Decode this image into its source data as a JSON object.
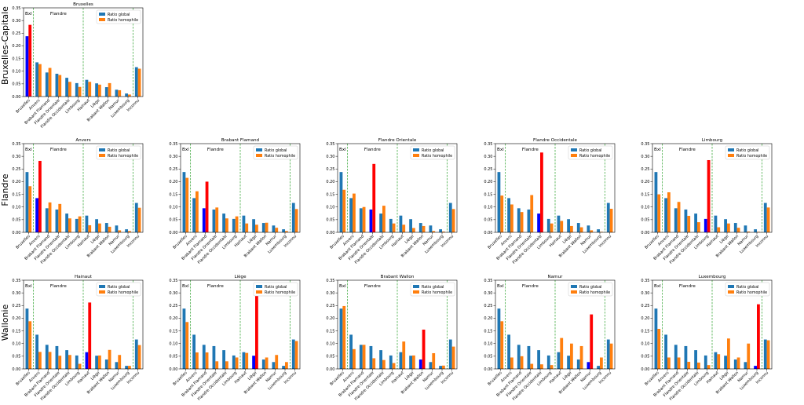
{
  "row_labels": [
    "Bruxelles-Capitale",
    "Flandre",
    "Wallonie"
  ],
  "regions": {
    "bxl": "Bxl",
    "flandre": "Flandre",
    "wallonie": "Wallonie"
  },
  "colors": {
    "global": "#1f77b4",
    "homophile": "#ff7f0e",
    "highlight_global": "#0000ff",
    "highlight_homophile": "#ff0000",
    "separator": "#2ca02c"
  },
  "chart_data": [
    {
      "type": "bar",
      "title": "Bruxelles",
      "highlight": 0,
      "categories": [
        "Bruxelles",
        "Anvers",
        "Brabant Flamand",
        "Flandre Orientale",
        "Flandre Occidentale",
        "Limbourg",
        "Hainaut",
        "Liège",
        "Brabant Wallon",
        "Namur",
        "Luxembourg",
        "Inconnu"
      ],
      "series": [
        {
          "name": "Ratio global",
          "values": [
            0.238,
            0.135,
            0.095,
            0.09,
            0.074,
            0.053,
            0.066,
            0.052,
            0.037,
            0.027,
            0.012,
            0.116
          ]
        },
        {
          "name": "Ratio homophile",
          "values": [
            0.283,
            0.128,
            0.113,
            0.085,
            0.058,
            0.038,
            0.058,
            0.047,
            0.053,
            0.025,
            0.008,
            0.11
          ]
        }
      ],
      "ylim": [
        0,
        0.35
      ],
      "yticks": [
        "0.00",
        "0.05",
        "0.10",
        "0.15",
        "0.20",
        "0.25",
        "0.30",
        "0.35"
      ],
      "legend": "upper right"
    },
    {
      "type": "bar",
      "title": "Anvers",
      "highlight": 1,
      "categories": [
        "Bruxelles",
        "Anvers",
        "Brabant Flamand",
        "Flandre Orientale",
        "Flandre Occidentale",
        "Limbourg",
        "Hainaut",
        "Liège",
        "Brabant Wallon",
        "Namur",
        "Luxembourg",
        "Inconnu"
      ],
      "series": [
        {
          "name": "Ratio global",
          "values": [
            0.238,
            0.135,
            0.095,
            0.09,
            0.074,
            0.053,
            0.066,
            0.052,
            0.037,
            0.027,
            0.012,
            0.116
          ]
        },
        {
          "name": "Ratio homophile",
          "values": [
            0.182,
            0.282,
            0.118,
            0.112,
            0.055,
            0.063,
            0.028,
            0.035,
            0.022,
            0.008,
            0.005,
            0.097
          ]
        }
      ],
      "ylim": [
        0,
        0.35
      ],
      "yticks": [
        "0.00",
        "0.05",
        "0.10",
        "0.15",
        "0.20",
        "0.25",
        "0.30",
        "0.35"
      ],
      "legend": "upper right"
    },
    {
      "type": "bar",
      "title": "Brabant Flamand",
      "highlight": 2,
      "categories": [
        "Bruxelles",
        "Anvers",
        "Brabant Flamand",
        "Flandre Orientale",
        "Flandre Occidentale",
        "Limbourg",
        "Hainaut",
        "Liège",
        "Brabant Wallon",
        "Namur",
        "Luxembourg",
        "Inconnu"
      ],
      "series": [
        {
          "name": "Ratio global",
          "values": [
            0.238,
            0.135,
            0.095,
            0.09,
            0.074,
            0.053,
            0.066,
            0.052,
            0.037,
            0.027,
            0.012,
            0.116
          ]
        },
        {
          "name": "Ratio homophile",
          "values": [
            0.215,
            0.162,
            0.2,
            0.098,
            0.055,
            0.063,
            0.035,
            0.03,
            0.038,
            0.018,
            0.005,
            0.092
          ]
        }
      ],
      "ylim": [
        0,
        0.35
      ],
      "yticks": [
        "0.00",
        "0.05",
        "0.10",
        "0.15",
        "0.20",
        "0.25",
        "0.30",
        "0.35"
      ],
      "legend": "upper right"
    },
    {
      "type": "bar",
      "title": "Flandre Orientale",
      "highlight": 3,
      "categories": [
        "Bruxelles",
        "Anvers",
        "Brabant Flamand",
        "Flandre Orientale",
        "Flandre Occidentale",
        "Limbourg",
        "Hainaut",
        "Liège",
        "Brabant Wallon",
        "Namur",
        "Luxembourg",
        "Inconnu"
      ],
      "series": [
        {
          "name": "Ratio global",
          "values": [
            0.238,
            0.135,
            0.095,
            0.09,
            0.074,
            0.053,
            0.066,
            0.052,
            0.037,
            0.027,
            0.012,
            0.116
          ]
        },
        {
          "name": "Ratio homophile",
          "values": [
            0.168,
            0.153,
            0.1,
            0.27,
            0.105,
            0.035,
            0.03,
            0.017,
            0.025,
            0.005,
            0.003,
            0.092
          ]
        }
      ],
      "ylim": [
        0,
        0.35
      ],
      "yticks": [
        "0.00",
        "0.05",
        "0.10",
        "0.15",
        "0.20",
        "0.25",
        "0.30",
        "0.35"
      ],
      "legend": "upper right"
    },
    {
      "type": "bar",
      "title": "Flandre Occidentale",
      "highlight": 4,
      "categories": [
        "Bruxelles",
        "Anvers",
        "Brabant Flamand",
        "Flandre Orientale",
        "Flandre Occidentale",
        "Limbourg",
        "Hainaut",
        "Liège",
        "Brabant Wallon",
        "Namur",
        "Luxembourg",
        "Inconnu"
      ],
      "series": [
        {
          "name": "Ratio global",
          "values": [
            0.238,
            0.135,
            0.095,
            0.09,
            0.074,
            0.053,
            0.066,
            0.052,
            0.037,
            0.027,
            0.012,
            0.116
          ]
        },
        {
          "name": "Ratio homophile",
          "values": [
            0.145,
            0.11,
            0.08,
            0.147,
            0.315,
            0.035,
            0.045,
            0.025,
            0.02,
            0.008,
            0.002,
            0.093
          ]
        }
      ],
      "ylim": [
        0,
        0.35
      ],
      "yticks": [
        "0.00",
        "0.05",
        "0.10",
        "0.15",
        "0.20",
        "0.25",
        "0.30",
        "0.35"
      ],
      "legend": "upper right"
    },
    {
      "type": "bar",
      "title": "Limbourg",
      "highlight": 5,
      "categories": [
        "Bruxelles",
        "Anvers",
        "Brabant Flamand",
        "Flandre Orientale",
        "Flandre Occidentale",
        "Limbourg",
        "Hainaut",
        "Liège",
        "Brabant Wallon",
        "Namur",
        "Luxembourg",
        "Inconnu"
      ],
      "series": [
        {
          "name": "Ratio global",
          "values": [
            0.238,
            0.135,
            0.095,
            0.09,
            0.074,
            0.053,
            0.066,
            0.052,
            0.037,
            0.027,
            0.012,
            0.116
          ]
        },
        {
          "name": "Ratio homophile",
          "values": [
            0.15,
            0.158,
            0.12,
            0.065,
            0.04,
            0.285,
            0.02,
            0.035,
            0.018,
            0.003,
            0.002,
            0.098
          ]
        }
      ],
      "ylim": [
        0,
        0.35
      ],
      "yticks": [
        "0.00",
        "0.05",
        "0.10",
        "0.15",
        "0.20",
        "0.25",
        "0.30",
        "0.35"
      ],
      "legend": "upper right"
    },
    {
      "type": "bar",
      "title": "Hainaut",
      "highlight": 6,
      "categories": [
        "Bruxelles",
        "Anvers",
        "Brabant Flamand",
        "Flandre Orientale",
        "Flandre Occidentale",
        "Limbourg",
        "Hainaut",
        "Liège",
        "Brabant Wallon",
        "Namur",
        "Luxembourg",
        "Inconnu"
      ],
      "series": [
        {
          "name": "Ratio global",
          "values": [
            0.238,
            0.135,
            0.095,
            0.09,
            0.074,
            0.053,
            0.066,
            0.052,
            0.037,
            0.027,
            0.012,
            0.116
          ]
        },
        {
          "name": "Ratio homophile",
          "values": [
            0.188,
            0.067,
            0.067,
            0.052,
            0.055,
            0.02,
            0.262,
            0.053,
            0.075,
            0.055,
            0.012,
            0.094
          ]
        }
      ],
      "ylim": [
        0,
        0.35
      ],
      "yticks": [
        "0.00",
        "0.05",
        "0.10",
        "0.15",
        "0.20",
        "0.25",
        "0.30",
        "0.35"
      ],
      "legend": "upper right"
    },
    {
      "type": "bar",
      "title": "Liège",
      "highlight": 7,
      "categories": [
        "Bruxelles",
        "Anvers",
        "Brabant Flamand",
        "Flandre Orientale",
        "Flandre Occidentale",
        "Limbourg",
        "Hainaut",
        "Liège",
        "Brabant Wallon",
        "Namur",
        "Luxembourg",
        "Inconnu"
      ],
      "series": [
        {
          "name": "Ratio global",
          "values": [
            0.238,
            0.135,
            0.095,
            0.09,
            0.074,
            0.053,
            0.066,
            0.052,
            0.037,
            0.027,
            0.012,
            0.116
          ]
        },
        {
          "name": "Ratio homophile",
          "values": [
            0.185,
            0.065,
            0.065,
            0.03,
            0.03,
            0.045,
            0.063,
            0.31,
            0.045,
            0.055,
            0.027,
            0.11
          ]
        }
      ],
      "ylim": [
        0,
        0.35
      ],
      "yticks": [
        "0.00",
        "0.05",
        "0.10",
        "0.15",
        "0.20",
        "0.25",
        "0.30",
        "0.35"
      ],
      "legend": "upper right"
    },
    {
      "type": "bar",
      "title": "Brabant Wallon",
      "highlight": 8,
      "categories": [
        "Bruxelles",
        "Anvers",
        "Brabant Flamand",
        "Flandre Orientale",
        "Flandre Occidentale",
        "Limbourg",
        "Hainaut",
        "Liège",
        "Brabant Wallon",
        "Namur",
        "Luxembourg",
        "Inconnu"
      ],
      "series": [
        {
          "name": "Ratio global",
          "values": [
            0.238,
            0.135,
            0.095,
            0.09,
            0.074,
            0.053,
            0.066,
            0.052,
            0.037,
            0.027,
            0.012,
            0.116
          ]
        },
        {
          "name": "Ratio homophile",
          "values": [
            0.248,
            0.078,
            0.095,
            0.042,
            0.035,
            0.023,
            0.108,
            0.053,
            0.155,
            0.062,
            0.013,
            0.088
          ]
        }
      ],
      "ylim": [
        0,
        0.35
      ],
      "yticks": [
        "0.00",
        "0.05",
        "0.10",
        "0.15",
        "0.20",
        "0.25",
        "0.30",
        "0.35"
      ],
      "legend": "upper right"
    },
    {
      "type": "bar",
      "title": "Namur",
      "highlight": 9,
      "categories": [
        "Bruxelles",
        "Anvers",
        "Brabant Flamand",
        "Flandre Orientale",
        "Flandre Occidentale",
        "Limbourg",
        "Hainaut",
        "Liège",
        "Brabant Wallon",
        "Namur",
        "Luxembourg",
        "Inconnu"
      ],
      "series": [
        {
          "name": "Ratio global",
          "values": [
            0.238,
            0.135,
            0.095,
            0.09,
            0.074,
            0.053,
            0.066,
            0.052,
            0.037,
            0.027,
            0.012,
            0.116
          ]
        },
        {
          "name": "Ratio homophile",
          "values": [
            0.188,
            0.045,
            0.05,
            0.02,
            0.018,
            0.015,
            0.122,
            0.1,
            0.09,
            0.215,
            0.045,
            0.1
          ]
        }
      ],
      "ylim": [
        0,
        0.35
      ],
      "yticks": [
        "0.00",
        "0.05",
        "0.10",
        "0.15",
        "0.20",
        "0.25",
        "0.30",
        "0.35"
      ],
      "legend": "upper right"
    },
    {
      "type": "bar",
      "title": "Luxembourg",
      "highlight": 10,
      "categories": [
        "Bruxelles",
        "Anvers",
        "Brabant Flamand",
        "Flandre Orientale",
        "Flandre Occidentale",
        "Limbourg",
        "Hainaut",
        "Liège",
        "Brabant Wallon",
        "Namur",
        "Luxembourg",
        "Inconnu"
      ],
      "series": [
        {
          "name": "Ratio global",
          "values": [
            0.238,
            0.135,
            0.095,
            0.09,
            0.074,
            0.053,
            0.066,
            0.052,
            0.037,
            0.027,
            0.012,
            0.116
          ]
        },
        {
          "name": "Ratio homophile",
          "values": [
            0.158,
            0.045,
            0.045,
            0.028,
            0.025,
            0.015,
            0.058,
            0.12,
            0.045,
            0.1,
            0.255,
            0.113
          ]
        }
      ],
      "ylim": [
        0,
        0.35
      ],
      "yticks": [
        "0.00",
        "0.05",
        "0.10",
        "0.15",
        "0.20",
        "0.25",
        "0.30",
        "0.35"
      ],
      "legend": "upper right"
    }
  ]
}
